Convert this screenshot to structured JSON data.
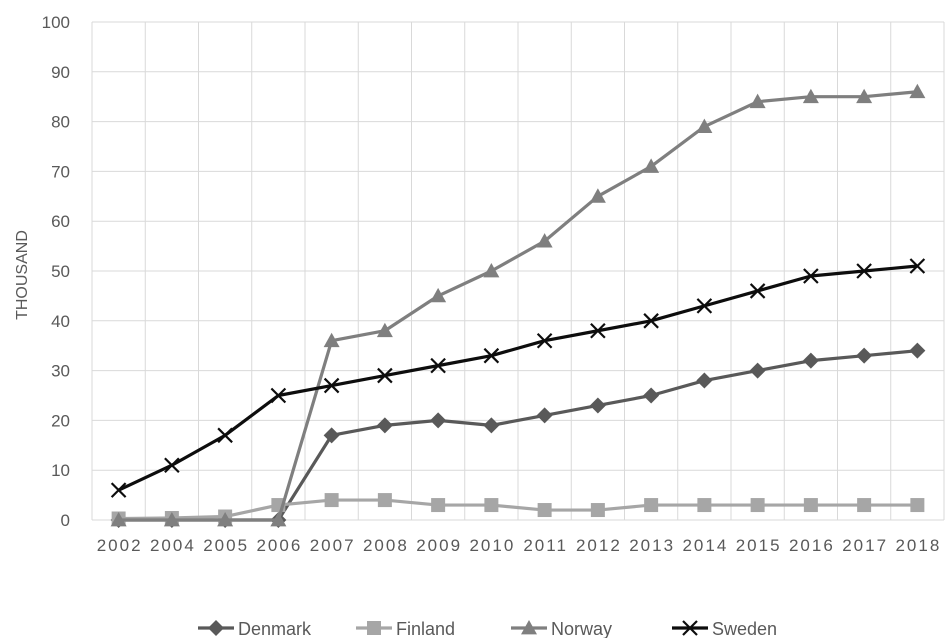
{
  "chart_data": {
    "type": "line",
    "title": "",
    "xlabel": "",
    "ylabel": "THOUSAND",
    "ylim": [
      0,
      100
    ],
    "yticks": [
      0,
      10,
      20,
      30,
      40,
      50,
      60,
      70,
      80,
      90,
      100
    ],
    "categories": [
      "2002",
      "2004",
      "2005",
      "2006",
      "2007",
      "2008",
      "2009",
      "2010",
      "2011",
      "2012",
      "2013",
      "2014",
      "2015",
      "2016",
      "2017",
      "2018"
    ],
    "grid": true,
    "legend_position": "bottom",
    "series": [
      {
        "name": "Denmark",
        "marker": "diamond",
        "color": "#595959",
        "values": [
          0,
          0,
          0,
          0,
          17,
          19,
          20,
          19,
          21,
          23,
          25,
          28,
          30,
          32,
          33,
          34
        ]
      },
      {
        "name": "Finland",
        "marker": "square",
        "color": "#a6a6a6",
        "values": [
          0.3,
          0.4,
          0.7,
          3,
          4,
          4,
          3,
          3,
          2,
          2,
          3,
          3,
          3,
          3,
          3,
          3
        ]
      },
      {
        "name": "Norway",
        "marker": "triangle",
        "color": "#7f7f7f",
        "values": [
          0,
          0,
          0,
          0,
          36,
          38,
          45,
          50,
          56,
          65,
          71,
          79,
          84,
          85,
          85,
          86
        ]
      },
      {
        "name": "Sweden",
        "marker": "x",
        "color": "#0d0d0d",
        "values": [
          6,
          11,
          17,
          25,
          27,
          29,
          31,
          33,
          36,
          38,
          40,
          43,
          46,
          49,
          50,
          51
        ]
      }
    ]
  }
}
